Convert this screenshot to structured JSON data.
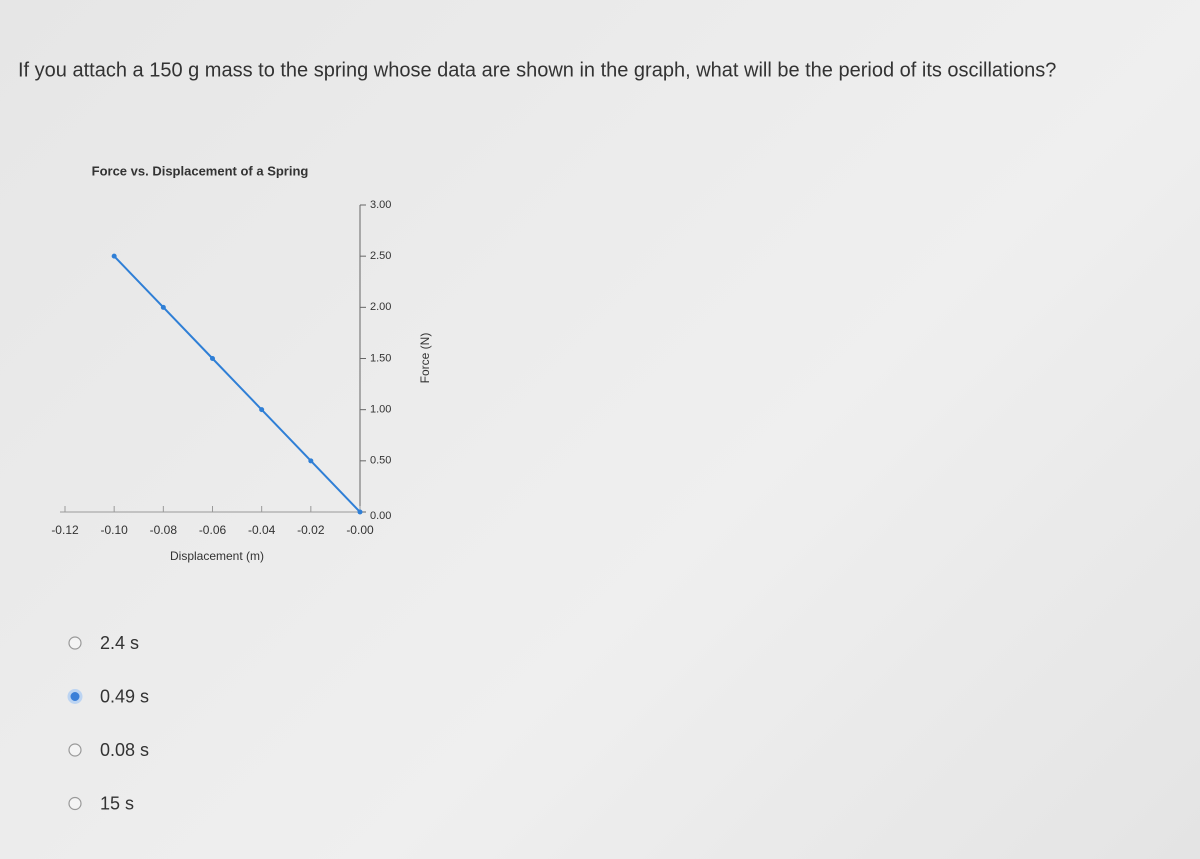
{
  "question": "If you attach a 150 g mass to the spring whose data are shown in the graph, what will be the period of its oscillations?",
  "chart_data": {
    "type": "line",
    "title": "Force vs. Displacement of a Spring",
    "x_label": "Displacement (m)",
    "y_label": "Force (N)",
    "x": [
      -0.1,
      -0.08,
      -0.06,
      -0.04,
      -0.02,
      0
    ],
    "values": [
      2.5,
      2.0,
      1.5,
      1.0,
      0.5,
      0
    ],
    "color": "#2f7fd6",
    "xlim": [
      -0.12,
      0
    ],
    "xticks": [
      {
        "value": -0.12,
        "label": "-0.12"
      },
      {
        "value": -0.1,
        "label": "-0.10"
      },
      {
        "value": -0.08,
        "label": "-0.08"
      },
      {
        "value": -0.06,
        "label": "-0.06"
      },
      {
        "value": -0.04,
        "label": "-0.04"
      },
      {
        "value": -0.02,
        "label": "-0.02"
      },
      {
        "value": 0,
        "label": "-0.00"
      }
    ],
    "ylim": [
      0,
      3
    ],
    "yticks": [
      {
        "value": 0,
        "label": "0.00"
      },
      {
        "value": 0.5,
        "label": "0.50"
      },
      {
        "value": 1,
        "label": "1.00"
      },
      {
        "value": 1.5,
        "label": "1.50"
      },
      {
        "value": 2,
        "label": "2.00"
      },
      {
        "value": 2.5,
        "label": "2.50"
      },
      {
        "value": 3,
        "label": "3.00"
      }
    ]
  },
  "options": [
    "2.4 s",
    "0.49 s",
    "0.08 s",
    "15 s"
  ],
  "selected": 1
}
